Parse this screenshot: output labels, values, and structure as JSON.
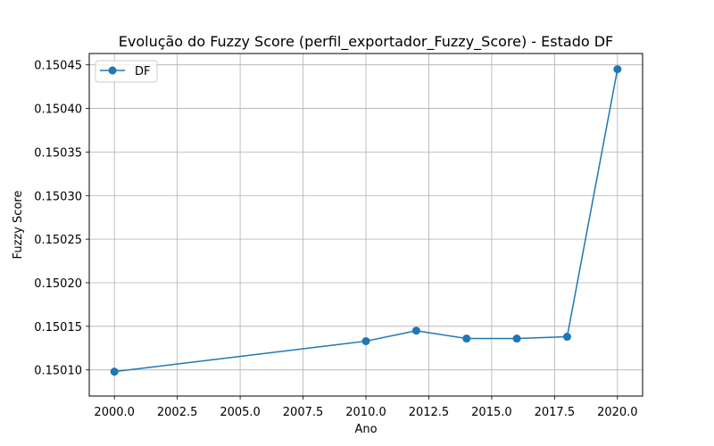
{
  "chart_data": {
    "type": "line",
    "title": "Evolução do Fuzzy Score (perfil_exportador_Fuzzy_Score) - Estado DF",
    "xlabel": "Ano",
    "ylabel": "Fuzzy Score",
    "x": [
      2000,
      2010,
      2012,
      2014,
      2016,
      2018,
      2020
    ],
    "series": [
      {
        "name": "DF",
        "values": [
          0.150098,
          0.150133,
          0.150145,
          0.150136,
          0.150136,
          0.150138,
          0.150445
        ],
        "color": "#1f77b4",
        "marker": "circle"
      }
    ],
    "xlim": [
      1999.0,
      2021.0
    ],
    "ylim": [
      0.15007,
      0.150463
    ],
    "xticks": [
      2000.0,
      2002.5,
      2005.0,
      2007.5,
      2010.0,
      2012.5,
      2015.0,
      2017.5,
      2020.0
    ],
    "xtick_labels": [
      "2000.0",
      "2002.5",
      "2005.0",
      "2007.5",
      "2010.0",
      "2012.5",
      "2015.0",
      "2017.5",
      "2020.0"
    ],
    "yticks": [
      0.1501,
      0.15015,
      0.1502,
      0.15025,
      0.1503,
      0.15035,
      0.1504,
      0.15045
    ],
    "ytick_labels": [
      "0.15010",
      "0.15015",
      "0.15020",
      "0.15025",
      "0.15030",
      "0.15035",
      "0.15040",
      "0.15045"
    ],
    "grid": true,
    "legend_position": "upper-left"
  }
}
